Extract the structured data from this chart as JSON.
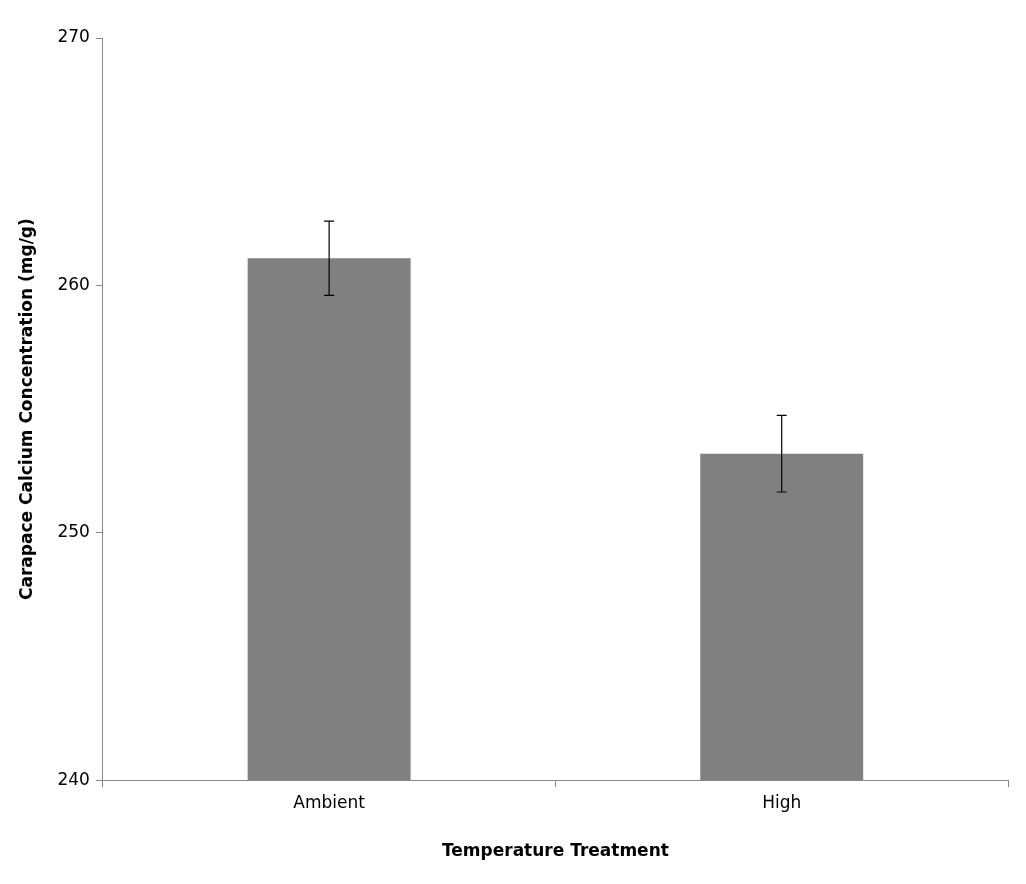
{
  "chart_data": {
    "type": "bar",
    "xlabel": "Temperature Treatment",
    "ylabel": "Carapace Calcium Concentration (mg/g)",
    "categories": [
      "Ambient",
      "High"
    ],
    "values": [
      261.1,
      253.2
    ],
    "errors": [
      1.5,
      1.55
    ],
    "color": "#808080",
    "ylim": [
      240,
      270
    ],
    "yticks": [
      240,
      250,
      260,
      270
    ],
    "grid": false,
    "legend": false
  }
}
